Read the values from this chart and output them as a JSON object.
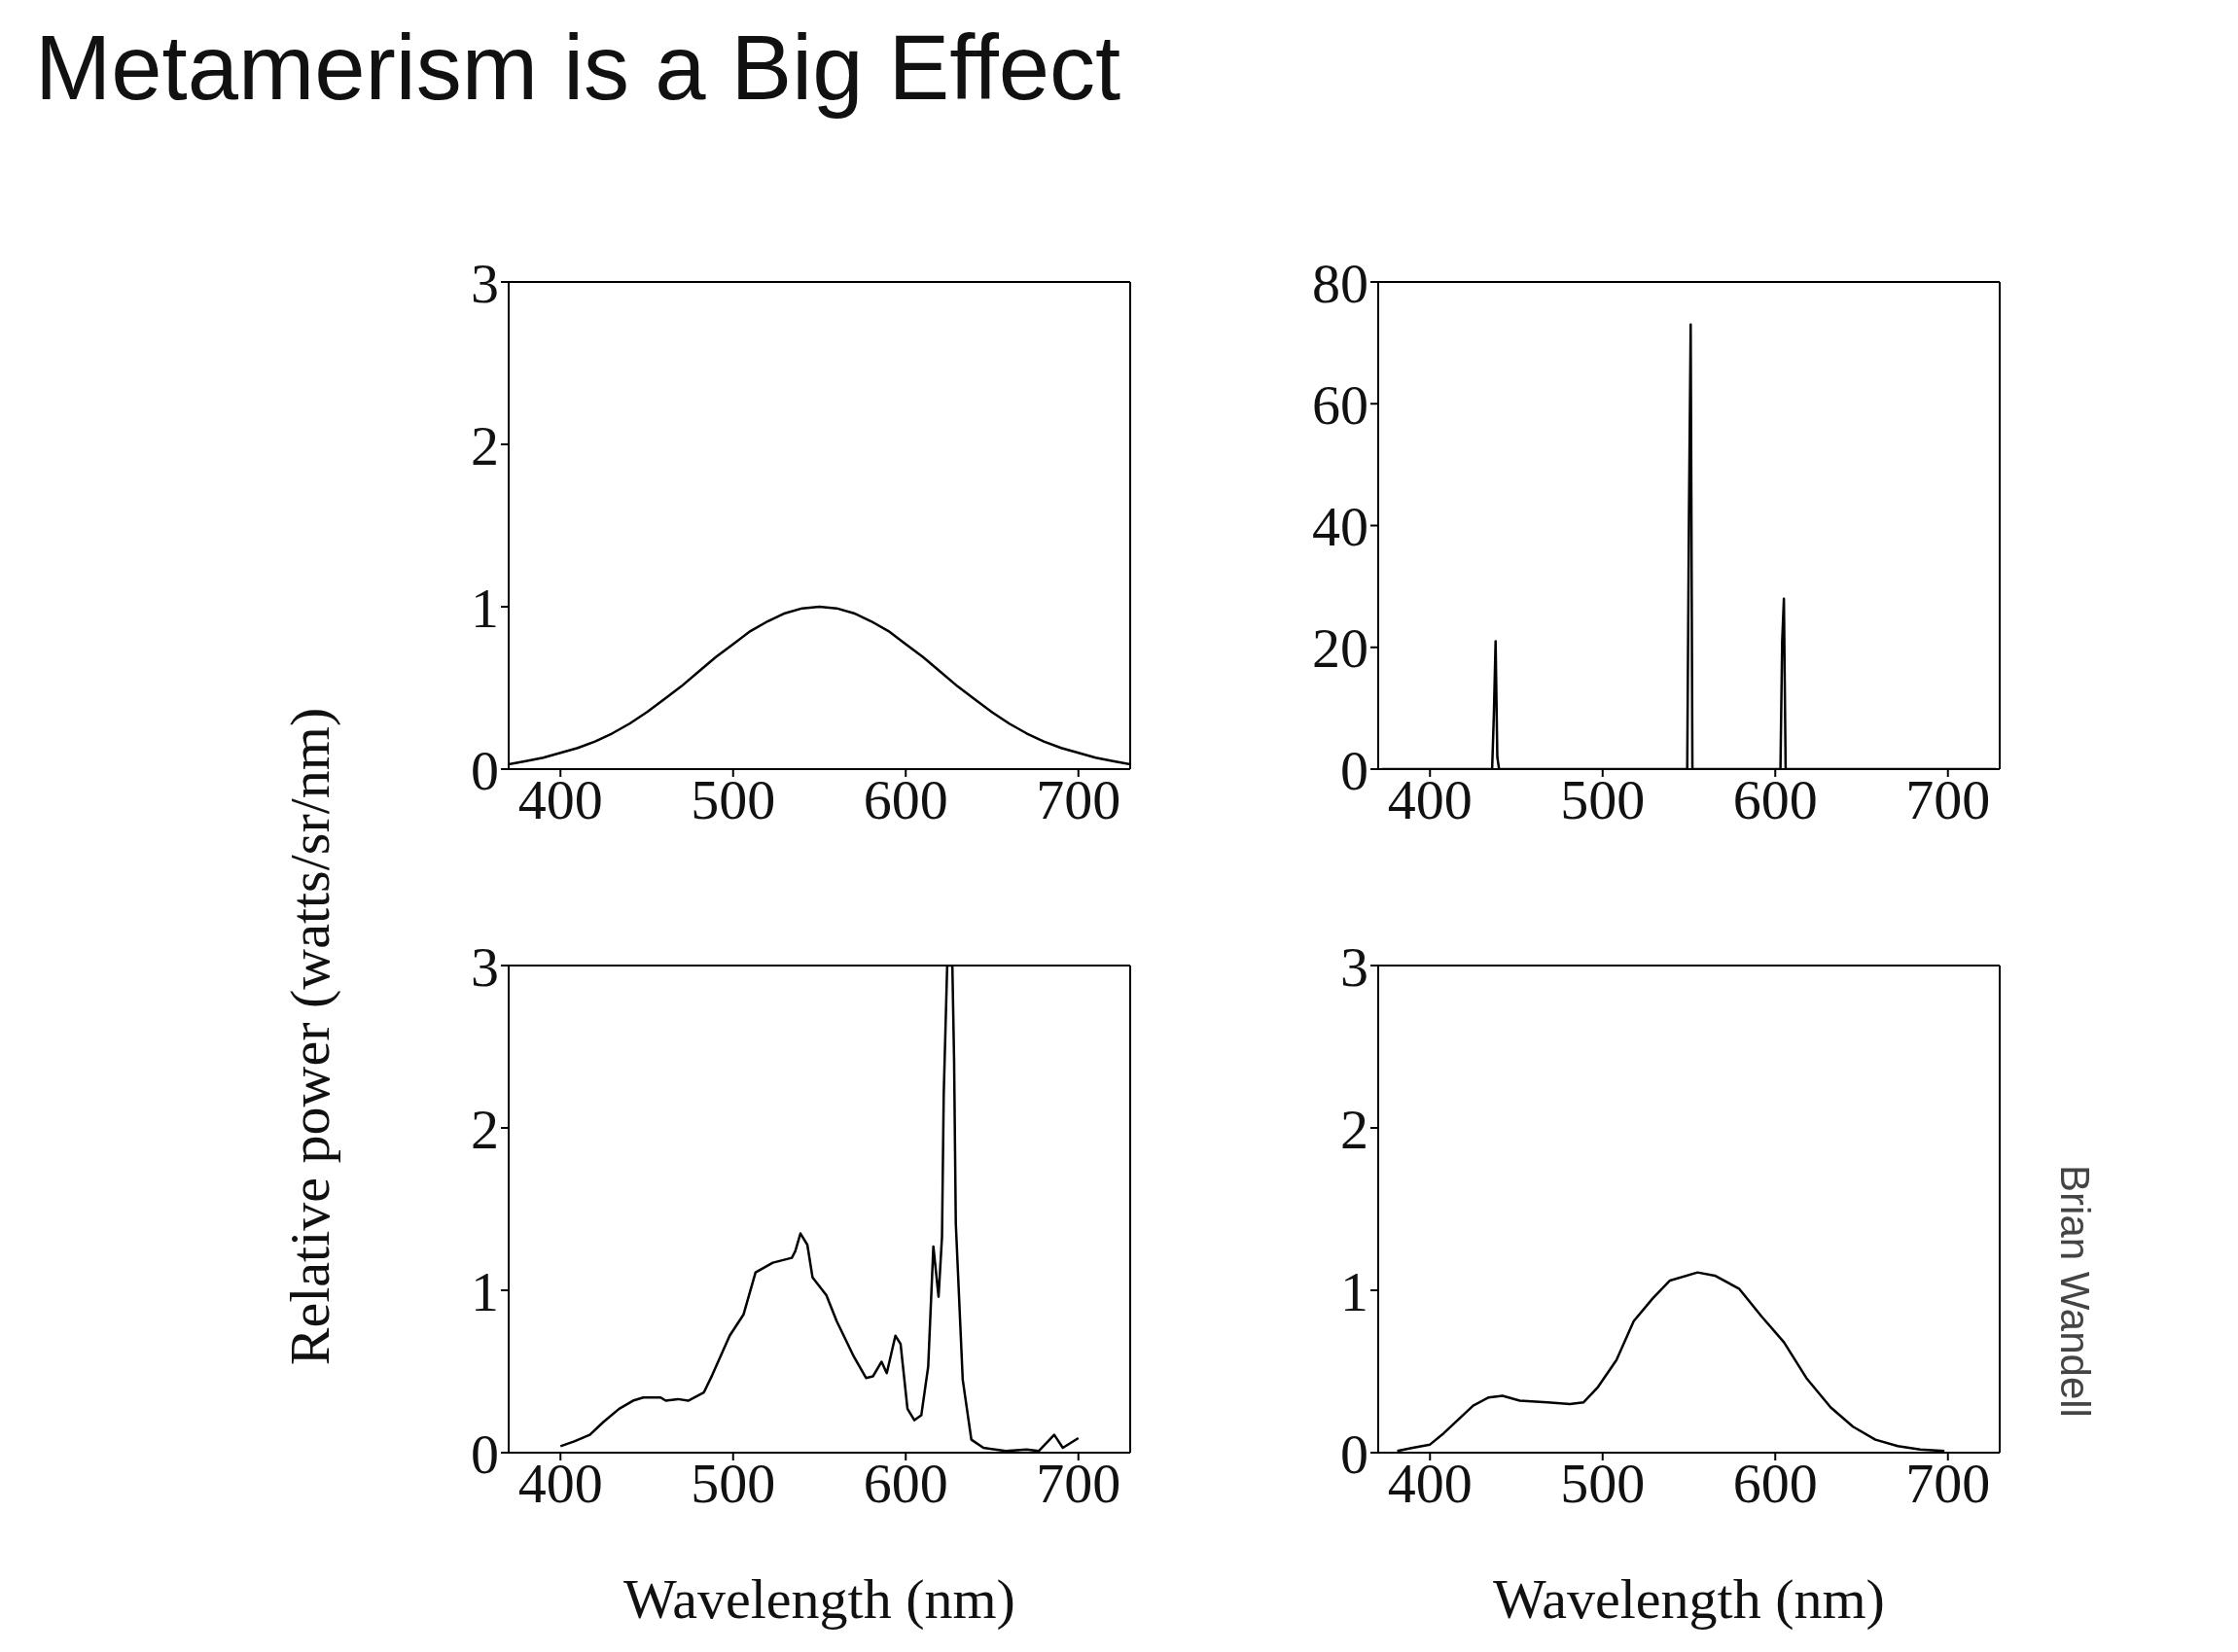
{
  "chart_data": [
    {
      "type": "line",
      "title": "Metamerism is a Big Effect",
      "ylabel": "Relative power (watts/sr/nm)",
      "color": "#000000",
      "xlim": [
        370,
        730
      ],
      "xticks": [
        400,
        500,
        600,
        700
      ],
      "ylim": [
        0,
        3
      ],
      "yticks": [
        0,
        1,
        2,
        3
      ],
      "x": [
        370,
        380,
        390,
        400,
        410,
        420,
        430,
        440,
        450,
        460,
        470,
        480,
        490,
        500,
        510,
        520,
        530,
        540,
        550,
        560,
        570,
        580,
        590,
        600,
        610,
        620,
        630,
        640,
        650,
        660,
        670,
        680,
        690,
        700,
        710,
        720,
        730
      ],
      "values": [
        0.03,
        0.05,
        0.07,
        0.1,
        0.13,
        0.17,
        0.22,
        0.28,
        0.35,
        0.43,
        0.51,
        0.6,
        0.69,
        0.77,
        0.85,
        0.91,
        0.96,
        0.99,
        1.0,
        0.99,
        0.96,
        0.91,
        0.85,
        0.77,
        0.69,
        0.6,
        0.51,
        0.43,
        0.35,
        0.28,
        0.22,
        0.17,
        0.13,
        0.1,
        0.07,
        0.05,
        0.03
      ]
    },
    {
      "type": "line",
      "color": "#000000",
      "xlim": [
        370,
        730
      ],
      "xticks": [
        400,
        500,
        600,
        700
      ],
      "ylim": [
        0,
        80
      ],
      "yticks": [
        0,
        20,
        40,
        60,
        80
      ],
      "x": [
        372,
        436,
        437,
        438,
        439,
        440,
        549,
        550,
        551,
        552,
        603,
        604,
        605,
        606,
        728
      ],
      "values": [
        0,
        0,
        9,
        21,
        2,
        0,
        0,
        42,
        73,
        0,
        0,
        21,
        28,
        0,
        0
      ]
    },
    {
      "type": "line",
      "xlabel": "Wavelength (nm)",
      "color": "#000000",
      "xlim": [
        370,
        730
      ],
      "xticks": [
        400,
        500,
        600,
        700
      ],
      "ylim": [
        0,
        3
      ],
      "yticks": [
        0,
        1,
        2,
        3
      ],
      "x": [
        400,
        408,
        417,
        425,
        434,
        442,
        448,
        458,
        461,
        468,
        474,
        483,
        488,
        498,
        506,
        513,
        523,
        534,
        536,
        539,
        543,
        546,
        554,
        560,
        570,
        577,
        581,
        586,
        589,
        594,
        597,
        601,
        605,
        609,
        613,
        616,
        619,
        621,
        622,
        624,
        627,
        628,
        629,
        633,
        638,
        645,
        658,
        670,
        677,
        686,
        691,
        700
      ],
      "values": [
        0.04,
        0.07,
        0.11,
        0.19,
        0.27,
        0.32,
        0.34,
        0.34,
        0.32,
        0.33,
        0.32,
        0.37,
        0.48,
        0.72,
        0.85,
        1.11,
        1.17,
        1.2,
        1.24,
        1.35,
        1.28,
        1.08,
        0.97,
        0.81,
        0.59,
        0.46,
        0.47,
        0.56,
        0.49,
        0.72,
        0.67,
        0.27,
        0.2,
        0.23,
        0.53,
        1.27,
        0.96,
        1.33,
        2.21,
        3.0,
        3.0,
        2.42,
        1.41,
        0.45,
        0.08,
        0.03,
        0.01,
        0.02,
        0.01,
        0.11,
        0.03,
        0.09
      ]
    },
    {
      "type": "line",
      "xlabel": "Wavelength (nm)",
      "annotations": [
        "Brian Wandell"
      ],
      "color": "#000000",
      "xlim": [
        370,
        730
      ],
      "xticks": [
        400,
        500,
        600,
        700
      ],
      "ylim": [
        0,
        3
      ],
      "yticks": [
        0,
        1,
        2,
        3
      ],
      "x": [
        381,
        390,
        400,
        408,
        416,
        425,
        434,
        442,
        452,
        468,
        481,
        489,
        497,
        508,
        518,
        529,
        539,
        555,
        565,
        579,
        592,
        605,
        618,
        632,
        645,
        658,
        671,
        684,
        698
      ],
      "values": [
        0.01,
        0.03,
        0.05,
        0.12,
        0.2,
        0.29,
        0.34,
        0.35,
        0.32,
        0.31,
        0.3,
        0.31,
        0.4,
        0.57,
        0.81,
        0.95,
        1.06,
        1.11,
        1.09,
        1.01,
        0.84,
        0.68,
        0.46,
        0.28,
        0.16,
        0.08,
        0.04,
        0.02,
        0.01
      ]
    }
  ]
}
